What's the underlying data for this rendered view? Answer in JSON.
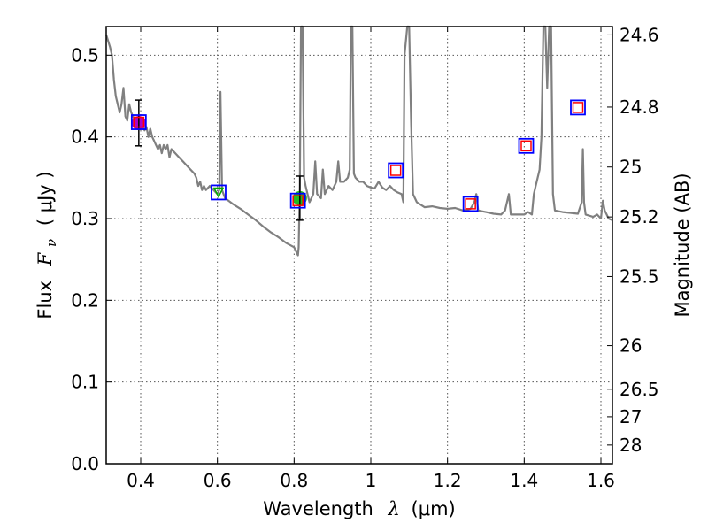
{
  "chart_data": {
    "type": "scatter",
    "xlabel_prefix": "Wavelength",
    "xlabel_symbol": "λ",
    "xlabel_unit": "(μm)",
    "ylabel_prefix": "Flux",
    "ylabel_symbol": "F",
    "ylabel_subscript": "ν",
    "ylabel_unit": "( μJy )",
    "y2label": "Magnitude (AB)",
    "xlim": [
      0.31,
      1.63
    ],
    "ylim": [
      0.0,
      0.535
    ],
    "x_ticks": [
      0.4,
      0.6,
      0.8,
      1.0,
      1.2,
      1.4,
      1.6
    ],
    "x_tick_labels": [
      "0.4",
      "0.6",
      "0.8",
      "1",
      "1.2",
      "1.4",
      "1.6"
    ],
    "y_ticks": [
      0.0,
      0.1,
      0.2,
      0.3,
      0.4,
      0.5
    ],
    "y_tick_labels": [
      "0.0",
      "0.1",
      "0.2",
      "0.3",
      "0.4",
      "0.5"
    ],
    "y2_ticks": [
      {
        "label": "24.6",
        "flux": 0.5248
      },
      {
        "label": "24.8",
        "flux": 0.4365
      },
      {
        "label": "25",
        "flux": 0.3631
      },
      {
        "label": "25.2",
        "flux": 0.302
      },
      {
        "label": "25.5",
        "flux": 0.2291
      },
      {
        "label": "26",
        "flux": 0.1445
      },
      {
        "label": "26.5",
        "flux": 0.0912
      },
      {
        "label": "27",
        "flux": 0.0575
      },
      {
        "label": "28",
        "flux": 0.0229
      }
    ],
    "grid": true,
    "colors": {
      "sed": "#808080",
      "model_box": "#0000ff",
      "box_inner": "#ff0000",
      "box_inner_green": "#00aa00",
      "obs_violet": "#aa00cc",
      "obs_green": "#22bb22",
      "errorbar": "#000000"
    },
    "model_sed": {
      "name": "",
      "points": [
        [
          0.31,
          0.525
        ],
        [
          0.32,
          0.51
        ],
        [
          0.325,
          0.5
        ],
        [
          0.33,
          0.47
        ],
        [
          0.335,
          0.45
        ],
        [
          0.34,
          0.44
        ],
        [
          0.345,
          0.43
        ],
        [
          0.35,
          0.44
        ],
        [
          0.355,
          0.46
        ],
        [
          0.36,
          0.425
        ],
        [
          0.365,
          0.42
        ],
        [
          0.37,
          0.44
        ],
        [
          0.375,
          0.43
        ],
        [
          0.38,
          0.425
        ],
        [
          0.385,
          0.42
        ],
        [
          0.39,
          0.418
        ],
        [
          0.395,
          0.425
        ],
        [
          0.4,
          0.41
        ],
        [
          0.405,
          0.42
        ],
        [
          0.41,
          0.408
        ],
        [
          0.415,
          0.412
        ],
        [
          0.42,
          0.4
        ],
        [
          0.425,
          0.41
        ],
        [
          0.43,
          0.4
        ],
        [
          0.435,
          0.395
        ],
        [
          0.44,
          0.39
        ],
        [
          0.445,
          0.385
        ],
        [
          0.45,
          0.39
        ],
        [
          0.455,
          0.38
        ],
        [
          0.46,
          0.39
        ],
        [
          0.465,
          0.385
        ],
        [
          0.47,
          0.39
        ],
        [
          0.475,
          0.375
        ],
        [
          0.48,
          0.385
        ],
        [
          0.49,
          0.38
        ],
        [
          0.5,
          0.375
        ],
        [
          0.51,
          0.37
        ],
        [
          0.52,
          0.365
        ],
        [
          0.53,
          0.36
        ],
        [
          0.54,
          0.355
        ],
        [
          0.545,
          0.35
        ],
        [
          0.55,
          0.34
        ],
        [
          0.555,
          0.345
        ],
        [
          0.56,
          0.335
        ],
        [
          0.565,
          0.34
        ],
        [
          0.57,
          0.335
        ],
        [
          0.58,
          0.34
        ],
        [
          0.59,
          0.335
        ],
        [
          0.6,
          0.33
        ],
        [
          0.605,
          0.335
        ],
        [
          0.608,
          0.455
        ],
        [
          0.612,
          0.335
        ],
        [
          0.62,
          0.325
        ],
        [
          0.64,
          0.318
        ],
        [
          0.66,
          0.312
        ],
        [
          0.68,
          0.305
        ],
        [
          0.7,
          0.298
        ],
        [
          0.72,
          0.29
        ],
        [
          0.74,
          0.283
        ],
        [
          0.76,
          0.277
        ],
        [
          0.78,
          0.27
        ],
        [
          0.8,
          0.265
        ],
        [
          0.805,
          0.26
        ],
        [
          0.81,
          0.255
        ],
        [
          0.812,
          0.265
        ],
        [
          0.815,
          0.34
        ],
        [
          0.818,
          0.535
        ],
        [
          0.822,
          0.535
        ],
        [
          0.826,
          0.35
        ],
        [
          0.83,
          0.34
        ],
        [
          0.84,
          0.32
        ],
        [
          0.85,
          0.33
        ],
        [
          0.855,
          0.37
        ],
        [
          0.86,
          0.33
        ],
        [
          0.87,
          0.325
        ],
        [
          0.875,
          0.36
        ],
        [
          0.88,
          0.33
        ],
        [
          0.89,
          0.34
        ],
        [
          0.9,
          0.335
        ],
        [
          0.91,
          0.345
        ],
        [
          0.915,
          0.37
        ],
        [
          0.92,
          0.345
        ],
        [
          0.93,
          0.345
        ],
        [
          0.94,
          0.35
        ],
        [
          0.945,
          0.36
        ],
        [
          0.948,
          0.535
        ],
        [
          0.952,
          0.535
        ],
        [
          0.956,
          0.355
        ],
        [
          0.96,
          0.35
        ],
        [
          0.97,
          0.345
        ],
        [
          0.98,
          0.345
        ],
        [
          0.99,
          0.34
        ],
        [
          1.0,
          0.338
        ],
        [
          1.01,
          0.337
        ],
        [
          1.02,
          0.345
        ],
        [
          1.03,
          0.338
        ],
        [
          1.04,
          0.335
        ],
        [
          1.05,
          0.34
        ],
        [
          1.06,
          0.335
        ],
        [
          1.07,
          0.332
        ],
        [
          1.08,
          0.33
        ],
        [
          1.085,
          0.32
        ],
        [
          1.088,
          0.5
        ],
        [
          1.095,
          0.535
        ],
        [
          1.1,
          0.535
        ],
        [
          1.105,
          0.42
        ],
        [
          1.11,
          0.33
        ],
        [
          1.12,
          0.32
        ],
        [
          1.14,
          0.314
        ],
        [
          1.16,
          0.315
        ],
        [
          1.18,
          0.313
        ],
        [
          1.2,
          0.312
        ],
        [
          1.22,
          0.313
        ],
        [
          1.24,
          0.31
        ],
        [
          1.26,
          0.312
        ],
        [
          1.27,
          0.32
        ],
        [
          1.275,
          0.33
        ],
        [
          1.28,
          0.31
        ],
        [
          1.3,
          0.308
        ],
        [
          1.32,
          0.306
        ],
        [
          1.34,
          0.305
        ],
        [
          1.35,
          0.31
        ],
        [
          1.36,
          0.33
        ],
        [
          1.365,
          0.305
        ],
        [
          1.38,
          0.305
        ],
        [
          1.4,
          0.305
        ],
        [
          1.41,
          0.308
        ],
        [
          1.42,
          0.305
        ],
        [
          1.425,
          0.33
        ],
        [
          1.43,
          0.34
        ],
        [
          1.44,
          0.36
        ],
        [
          1.445,
          0.4
        ],
        [
          1.45,
          0.535
        ],
        [
          1.455,
          0.535
        ],
        [
          1.46,
          0.46
        ],
        [
          1.465,
          0.535
        ],
        [
          1.47,
          0.535
        ],
        [
          1.475,
          0.33
        ],
        [
          1.48,
          0.31
        ],
        [
          1.5,
          0.308
        ],
        [
          1.52,
          0.307
        ],
        [
          1.54,
          0.306
        ],
        [
          1.55,
          0.32
        ],
        [
          1.553,
          0.385
        ],
        [
          1.556,
          0.32
        ],
        [
          1.56,
          0.305
        ],
        [
          1.58,
          0.302
        ],
        [
          1.59,
          0.305
        ],
        [
          1.6,
          0.3
        ],
        [
          1.605,
          0.322
        ],
        [
          1.61,
          0.31
        ],
        [
          1.62,
          0.3
        ],
        [
          1.63,
          0.298
        ]
      ]
    },
    "model_photometry": {
      "name": "",
      "x": [
        0.395,
        0.603,
        0.81,
        1.065,
        1.26,
        1.405,
        1.54
      ],
      "y": [
        0.418,
        0.332,
        0.322,
        0.359,
        0.318,
        0.389,
        0.436
      ]
    },
    "observed": [
      {
        "x": 0.395,
        "y": 0.417,
        "yerr": 0.028,
        "color_key": "obs_violet"
      },
      {
        "x": 0.815,
        "y": 0.325,
        "yerr": 0.027,
        "color_key": "obs_green"
      }
    ]
  }
}
